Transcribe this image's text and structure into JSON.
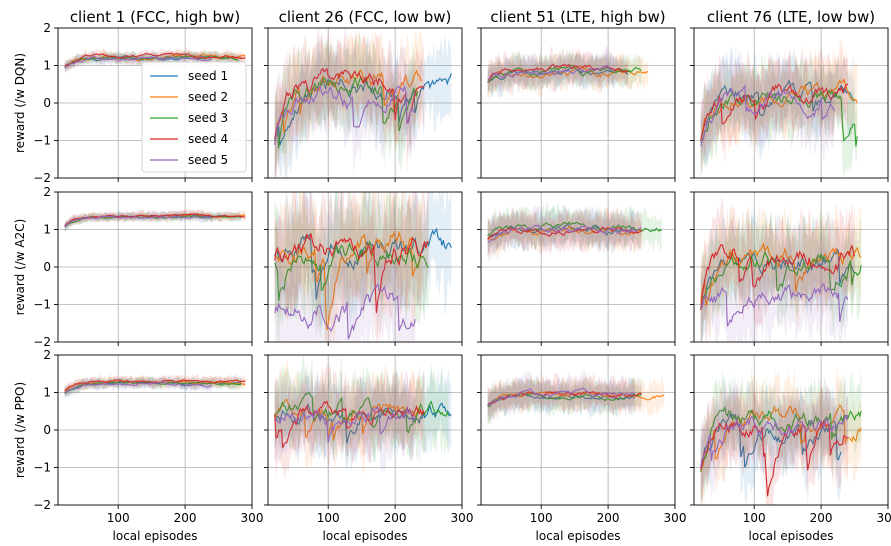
{
  "chart_data": {
    "type": "line",
    "titles": [
      "client 1 (FCC, high bw)",
      "client 26 (FCC, low bw)",
      "client 51 (LTE, high bw)",
      "client 76 (LTE, low bw)"
    ],
    "row_ylabels": [
      "reward (/w DQN)",
      "reward (/w A2C)",
      "reward (/w PPO)"
    ],
    "xlabel": "local episodes",
    "xticks": [
      100,
      200,
      300
    ],
    "xlim": [
      10,
      300
    ],
    "yticks": [
      -2,
      -1,
      0,
      1,
      2
    ],
    "ylim": [
      -2,
      2
    ],
    "grid": true,
    "legend": {
      "placement": "inside top-left panel, right side",
      "entries": [
        "seed 1",
        "seed 2",
        "seed 3",
        "seed 4",
        "seed 5"
      ]
    },
    "series_colors": [
      "#1f77b4",
      "#ff7f0e",
      "#2ca02c",
      "#d62728",
      "#9467bd"
    ],
    "panels": [
      {
        "row": 0,
        "col": 0,
        "x_end": [
          285,
          290,
          280,
          290,
          240
        ],
        "levels": [
          1.2,
          1.22,
          1.2,
          1.25,
          1.18
        ],
        "noise": 0.05,
        "band": 0.12
      },
      {
        "row": 0,
        "col": 1,
        "x_end": [
          285,
          240,
          235,
          245,
          230
        ],
        "levels": [
          0.45,
          0.55,
          0.4,
          0.5,
          0.2
        ],
        "noise": 0.3,
        "band": 0.9
      },
      {
        "row": 0,
        "col": 2,
        "x_end": [
          230,
          260,
          250,
          230,
          210
        ],
        "levels": [
          0.8,
          0.8,
          0.85,
          0.9,
          0.85
        ],
        "noise": 0.1,
        "band": 0.35
      },
      {
        "row": 0,
        "col": 3,
        "x_end": [
          250,
          255,
          255,
          240,
          220
        ],
        "levels": [
          0.2,
          0.25,
          0.15,
          0.3,
          0.1
        ],
        "noise": 0.25,
        "band": 0.8
      },
      {
        "row": 1,
        "col": 0,
        "x_end": [
          285,
          290,
          285,
          290,
          240
        ],
        "levels": [
          1.35,
          1.36,
          1.34,
          1.37,
          1.33
        ],
        "noise": 0.03,
        "band": 0.1
      },
      {
        "row": 1,
        "col": 1,
        "x_end": [
          285,
          240,
          250,
          250,
          230
        ],
        "levels": [
          0.5,
          0.6,
          0.3,
          0.6,
          -1.0
        ],
        "noise": 0.35,
        "band": 1.2
      },
      {
        "row": 1,
        "col": 2,
        "x_end": [
          240,
          250,
          280,
          250,
          250
        ],
        "levels": [
          1.0,
          0.95,
          1.05,
          1.0,
          0.95
        ],
        "noise": 0.1,
        "band": 0.4
      },
      {
        "row": 1,
        "col": 3,
        "x_end": [
          250,
          260,
          260,
          250,
          240
        ],
        "levels": [
          0.2,
          0.25,
          0.15,
          0.3,
          -0.8
        ],
        "noise": 0.3,
        "band": 0.9
      },
      {
        "row": 2,
        "col": 0,
        "x_end": [
          285,
          290,
          285,
          290,
          240
        ],
        "levels": [
          1.25,
          1.28,
          1.24,
          1.3,
          1.22
        ],
        "noise": 0.04,
        "band": 0.12
      },
      {
        "row": 2,
        "col": 1,
        "x_end": [
          285,
          240,
          280,
          245,
          230
        ],
        "levels": [
          0.5,
          0.5,
          0.55,
          0.6,
          0.5
        ],
        "noise": 0.25,
        "band": 0.8
      },
      {
        "row": 2,
        "col": 2,
        "x_end": [
          240,
          285,
          250,
          250,
          240
        ],
        "levels": [
          0.9,
          0.95,
          0.9,
          0.95,
          0.95
        ],
        "noise": 0.08,
        "band": 0.35
      },
      {
        "row": 2,
        "col": 3,
        "x_end": [
          230,
          260,
          260,
          240,
          240
        ],
        "levels": [
          0.1,
          0.3,
          0.35,
          0.3,
          0.2
        ],
        "noise": 0.3,
        "band": 0.8
      }
    ]
  }
}
